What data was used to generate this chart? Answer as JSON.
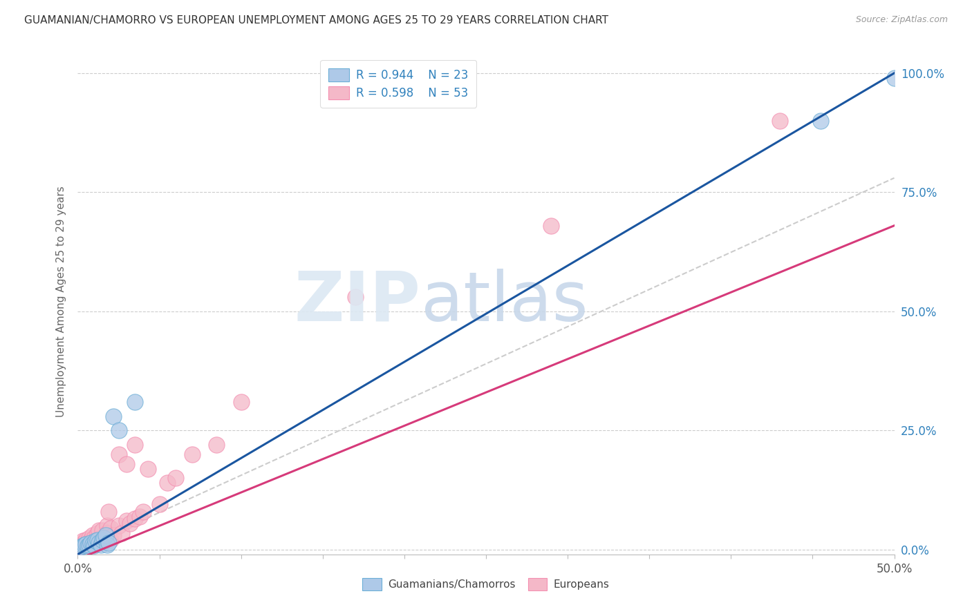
{
  "title": "GUAMANIAN/CHAMORRO VS EUROPEAN UNEMPLOYMENT AMONG AGES 25 TO 29 YEARS CORRELATION CHART",
  "source": "Source: ZipAtlas.com",
  "ylabel": "Unemployment Among Ages 25 to 29 years",
  "xlim": [
    0.0,
    0.5
  ],
  "ylim": [
    -0.01,
    1.05
  ],
  "xticks": [
    0.0,
    0.05,
    0.1,
    0.15,
    0.2,
    0.25,
    0.3,
    0.35,
    0.4,
    0.45,
    0.5
  ],
  "yticks_right": [
    0.0,
    0.25,
    0.5,
    0.75,
    1.0
  ],
  "yticklabels_right": [
    "0.0%",
    "25.0%",
    "50.0%",
    "75.0%",
    "100.0%"
  ],
  "blue_color": "#aec9e8",
  "pink_color": "#f4b8c8",
  "blue_edge_color": "#6baed6",
  "pink_edge_color": "#f48fb1",
  "blue_line_color": "#1a56a0",
  "pink_line_color": "#d63a7a",
  "text_color_blue": "#3182bd",
  "background_color": "#ffffff",
  "guam_x": [
    0.002,
    0.003,
    0.004,
    0.005,
    0.006,
    0.007,
    0.008,
    0.009,
    0.01,
    0.011,
    0.012,
    0.013,
    0.014,
    0.015,
    0.016,
    0.017,
    0.018,
    0.019,
    0.022,
    0.025,
    0.035,
    0.455,
    0.5
  ],
  "guam_y": [
    0.005,
    0.008,
    0.01,
    0.012,
    0.008,
    0.01,
    0.015,
    0.012,
    0.008,
    0.018,
    0.02,
    0.015,
    0.01,
    0.02,
    0.025,
    0.03,
    0.01,
    0.015,
    0.28,
    0.25,
    0.31,
    0.9,
    0.99
  ],
  "euro_x": [
    0.001,
    0.001,
    0.002,
    0.003,
    0.003,
    0.004,
    0.005,
    0.005,
    0.006,
    0.007,
    0.007,
    0.008,
    0.008,
    0.009,
    0.009,
    0.01,
    0.01,
    0.011,
    0.012,
    0.012,
    0.013,
    0.013,
    0.014,
    0.015,
    0.015,
    0.016,
    0.017,
    0.018,
    0.018,
    0.019,
    0.02,
    0.02,
    0.022,
    0.025,
    0.025,
    0.027,
    0.03,
    0.03,
    0.032,
    0.035,
    0.035,
    0.038,
    0.04,
    0.043,
    0.05,
    0.055,
    0.06,
    0.07,
    0.085,
    0.1,
    0.17,
    0.29,
    0.43
  ],
  "euro_y": [
    0.005,
    0.012,
    0.01,
    0.008,
    0.018,
    0.015,
    0.01,
    0.02,
    0.008,
    0.015,
    0.025,
    0.012,
    0.02,
    0.01,
    0.03,
    0.015,
    0.025,
    0.02,
    0.015,
    0.035,
    0.02,
    0.04,
    0.025,
    0.015,
    0.04,
    0.02,
    0.025,
    0.05,
    0.035,
    0.08,
    0.02,
    0.045,
    0.03,
    0.05,
    0.2,
    0.035,
    0.06,
    0.18,
    0.055,
    0.065,
    0.22,
    0.07,
    0.08,
    0.17,
    0.095,
    0.14,
    0.15,
    0.2,
    0.22,
    0.31,
    0.53,
    0.68,
    0.9
  ],
  "blue_line_x0": 0.0,
  "blue_line_y0": -0.01,
  "blue_line_x1": 0.5,
  "blue_line_y1": 1.0,
  "pink_line_x0": 0.0,
  "pink_line_y0": -0.02,
  "pink_line_x1": 0.5,
  "pink_line_y1": 0.68,
  "dash_line_x0": 0.0,
  "dash_line_y0": 0.0,
  "dash_line_x1": 0.5,
  "dash_line_y1": 0.78
}
